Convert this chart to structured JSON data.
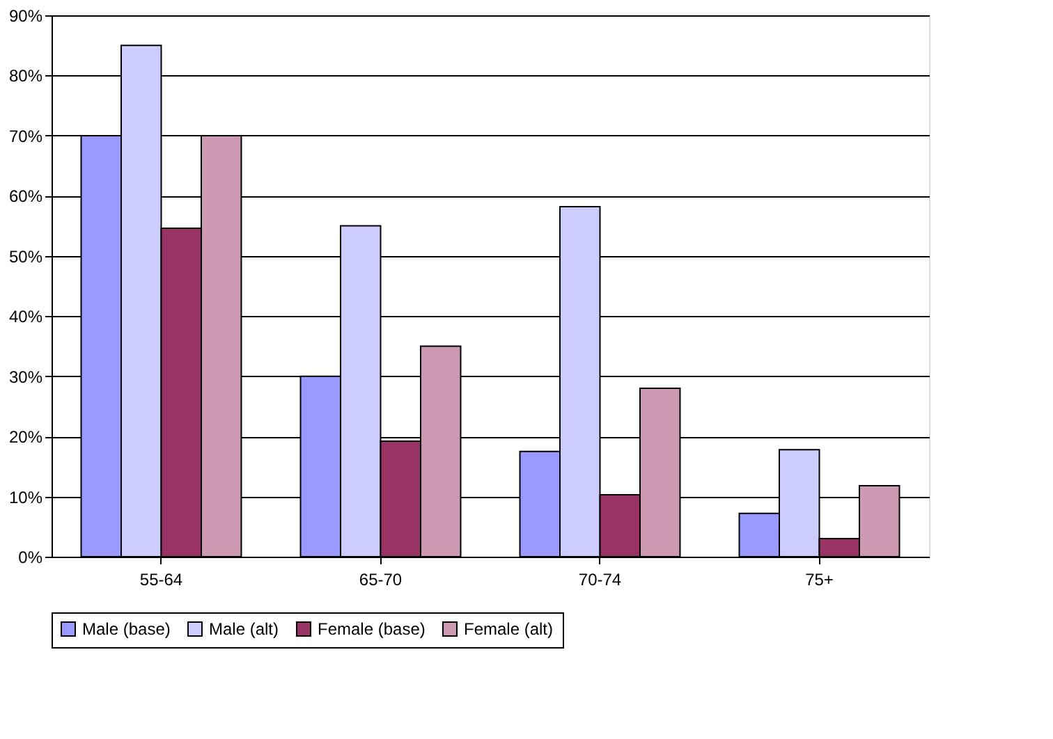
{
  "chart_data": {
    "type": "bar",
    "categories": [
      "55-64",
      "65-70",
      "70-74",
      "75+"
    ],
    "series": [
      {
        "name": "Male (base)",
        "color": "#9999ff",
        "values": [
          70,
          30,
          17.5,
          7.2
        ]
      },
      {
        "name": "Male (alt)",
        "color": "#ccccff",
        "values": [
          85,
          55,
          58.2,
          17.8
        ]
      },
      {
        "name": "Female (base)",
        "color": "#993366",
        "values": [
          54.6,
          19.2,
          10.3,
          3.0
        ]
      },
      {
        "name": "Female (alt)",
        "color": "#cc99b3",
        "values": [
          70,
          35,
          28,
          11.8
        ]
      }
    ],
    "ylim": [
      0,
      90
    ],
    "yticks": [
      {
        "value": 0,
        "label": "0%"
      },
      {
        "value": 10,
        "label": "10%"
      },
      {
        "value": 20,
        "label": "20%"
      },
      {
        "value": 30,
        "label": "30%"
      },
      {
        "value": 40,
        "label": "40%"
      },
      {
        "value": 50,
        "label": "50%"
      },
      {
        "value": 60,
        "label": "60%"
      },
      {
        "value": 70,
        "label": "70%"
      },
      {
        "value": 80,
        "label": "80%"
      },
      {
        "value": 90,
        "label": "90%"
      }
    ],
    "grid": "y",
    "legend": "bottom"
  }
}
